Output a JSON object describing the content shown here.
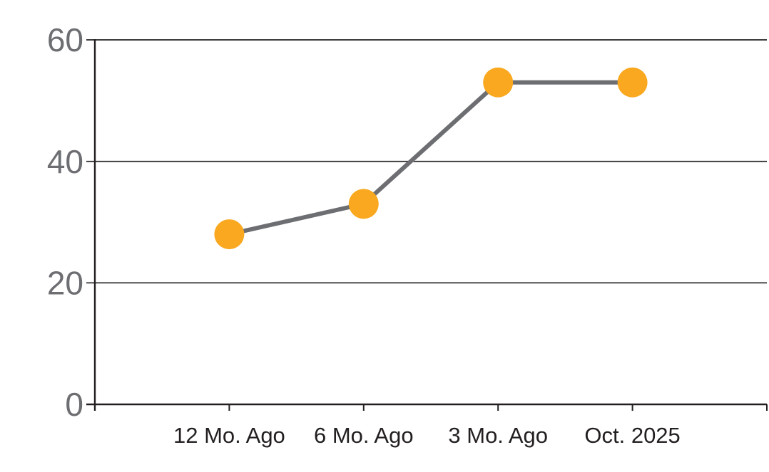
{
  "chart": {
    "background_color": "#ffffff",
    "line_color": "#6d6e71",
    "marker_color": "#f9a81f",
    "grid_color": "#231f20",
    "axis_color": "#231f20",
    "ytick_label_color": "#6d6e71",
    "xtick_label_color": "#231f20"
  },
  "chart_data": {
    "type": "line",
    "categories": [
      "12 Mo. Ago",
      "6 Mo. Ago",
      "3 Mo. Ago",
      "Oct. 2025"
    ],
    "values": [
      28,
      33,
      53,
      53
    ],
    "title": "",
    "xlabel": "",
    "ylabel": "",
    "ylim": [
      0,
      60
    ],
    "yticks": [
      0,
      20,
      40,
      60
    ],
    "grid": "horizontal",
    "legend": "none",
    "marker": "circle"
  }
}
